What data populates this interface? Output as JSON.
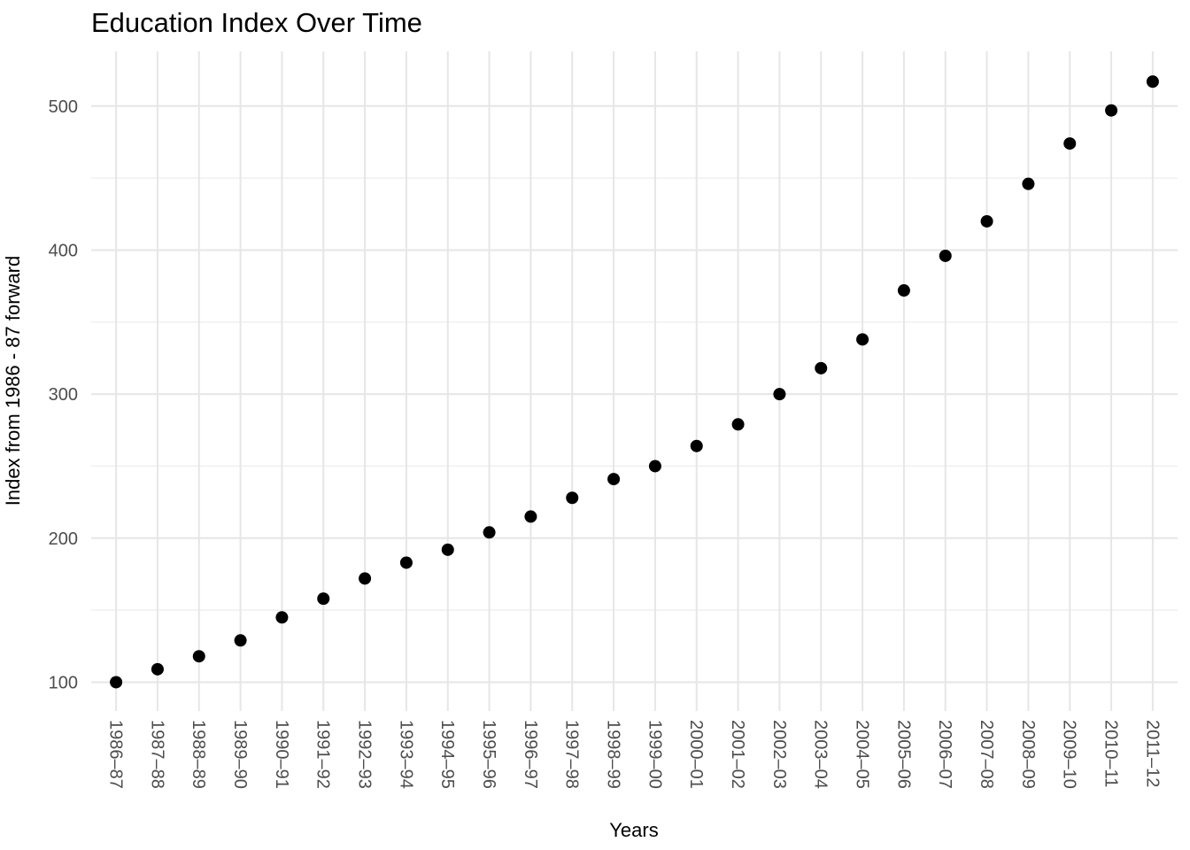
{
  "chart_data": {
    "type": "scatter",
    "title": "Education Index Over Time",
    "xlabel": "Years",
    "ylabel": "Index from 1986 - 87 forward",
    "categories": [
      "1986–87",
      "1987–88",
      "1988–89",
      "1989–90",
      "1990–91",
      "1991–92",
      "1992–93",
      "1993–94",
      "1994–95",
      "1995–96",
      "1996–97",
      "1997–98",
      "1998–99",
      "1999–00",
      "2000–01",
      "2001–02",
      "2002–03",
      "2003–04",
      "2004–05",
      "2005–06",
      "2006–07",
      "2007–08",
      "2008–09",
      "2009–10",
      "2010–11",
      "2011–12"
    ],
    "values": [
      100,
      109,
      118,
      129,
      145,
      158,
      172,
      183,
      192,
      204,
      215,
      228,
      241,
      250,
      264,
      279,
      300,
      318,
      338,
      372,
      396,
      420,
      446,
      474,
      497,
      517
    ],
    "ylim": [
      80,
      538
    ],
    "yticks_major": [
      100,
      200,
      300,
      400,
      500
    ],
    "yticks_minor": [
      150,
      250,
      350,
      450
    ],
    "grid": "horizontal major+minor, vertical major per category",
    "legend": "none",
    "colors": {
      "point": "#000000",
      "grid_major": "#e6e6e6",
      "grid_minor": "#efefef",
      "tick_text": "#4d4d4d",
      "title_text": "#000000",
      "background": "#ffffff"
    }
  }
}
